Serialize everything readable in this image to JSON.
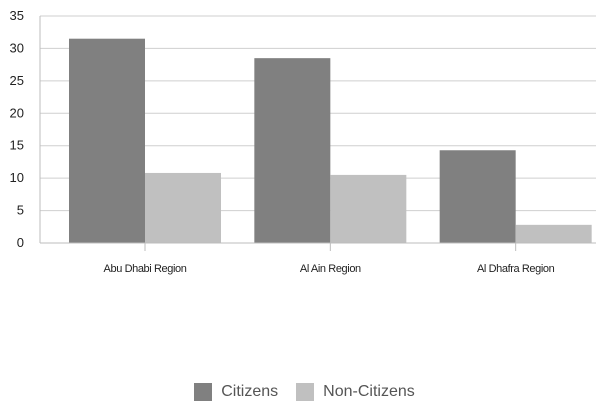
{
  "chart_data": {
    "type": "bar",
    "categories": [
      "Abu Dhabi Region",
      "Al Ain Region",
      "Al Dhafra Region"
    ],
    "series": [
      {
        "name": "Citizens",
        "values": [
          31.5,
          28.5,
          14.3
        ],
        "color": "#808080"
      },
      {
        "name": "Non-Citizens",
        "values": [
          10.8,
          10.5,
          2.8
        ],
        "color": "#c0c0c0"
      }
    ],
    "ylim": [
      0,
      35
    ],
    "yticks": [
      0,
      5,
      10,
      15,
      20,
      25,
      30,
      35
    ],
    "grid": true,
    "legend_position": "bottom"
  }
}
